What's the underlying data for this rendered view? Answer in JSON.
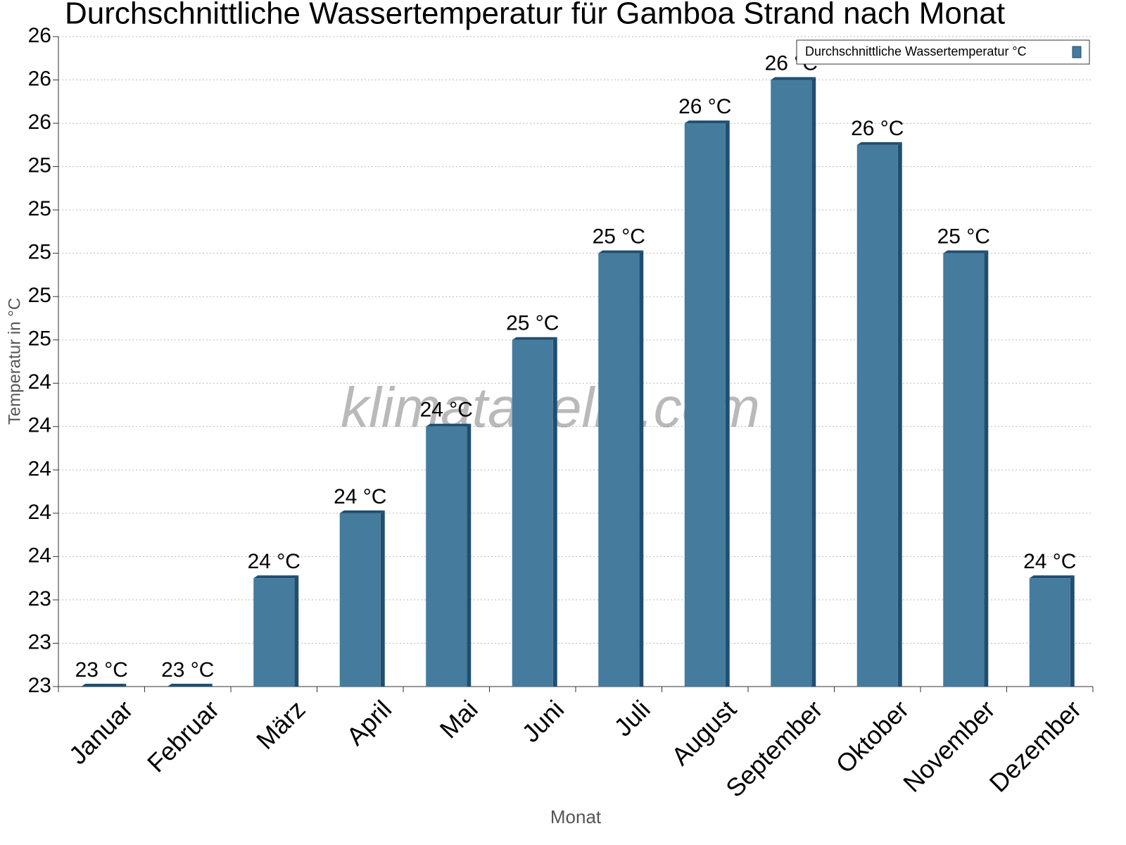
{
  "chart_data": {
    "type": "bar",
    "title": "Durchschnittliche Wassertemperatur für Gamboa Strand nach Monat",
    "x_label": "Monat",
    "y_label": "Temperatur in °C",
    "watermark": "klimatabelle.com",
    "categories": [
      "Januar",
      "Februar",
      "März",
      "April",
      "Mai",
      "Juni",
      "Juli",
      "August",
      "September",
      "Oktober",
      "November",
      "Dezember"
    ],
    "series": [
      {
        "name": "Durchschnittliche Wassertemperatur °C",
        "color": "#457b9d",
        "values": [
          23.0,
          23.0,
          23.5,
          23.8,
          24.2,
          24.6,
          25.0,
          25.6,
          25.8,
          25.5,
          25.0,
          23.5
        ],
        "value_labels": [
          "23 °C",
          "23 °C",
          "24 °C",
          "24 °C",
          "24 °C",
          "25 °C",
          "25 °C",
          "26 °C",
          "26 °C",
          "26 °C",
          "25 °C",
          "24 °C"
        ]
      }
    ],
    "ylim": [
      23.0,
      26.0
    ],
    "yticks": [
      {
        "value": 23.0,
        "label": "23"
      },
      {
        "value": 23.2,
        "label": "23"
      },
      {
        "value": 23.4,
        "label": "23"
      },
      {
        "value": 23.6,
        "label": "24"
      },
      {
        "value": 23.8,
        "label": "24"
      },
      {
        "value": 24.0,
        "label": "24"
      },
      {
        "value": 24.2,
        "label": "24"
      },
      {
        "value": 24.4,
        "label": "24"
      },
      {
        "value": 24.6,
        "label": "25"
      },
      {
        "value": 24.8,
        "label": "25"
      },
      {
        "value": 25.0,
        "label": "25"
      },
      {
        "value": 25.2,
        "label": "25"
      },
      {
        "value": 25.4,
        "label": "25"
      },
      {
        "value": 25.6,
        "label": "26"
      },
      {
        "value": 25.8,
        "label": "26"
      },
      {
        "value": 26.0,
        "label": "26"
      }
    ],
    "grid": true,
    "legend": "top-right"
  }
}
